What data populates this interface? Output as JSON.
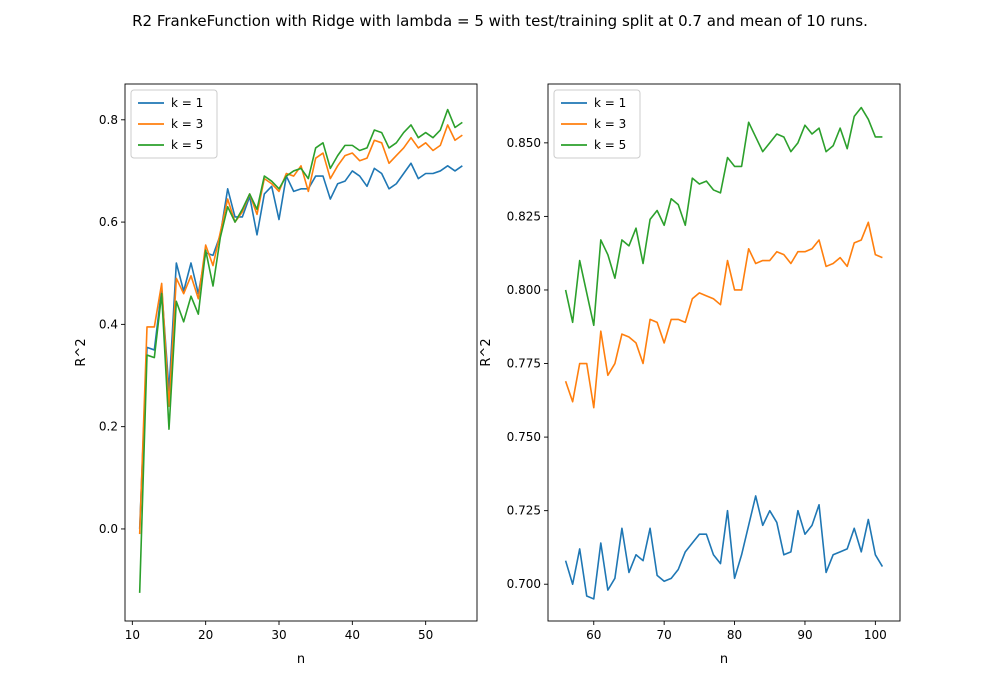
{
  "figure": {
    "suptitle": "R2 FrankeFunction with Ridge with lambda = 5 with test/training split at 0.7 and mean of 10 runs."
  },
  "colors": {
    "k1": "#1f77b4",
    "k3": "#ff7f0e",
    "k5": "#2ca02c"
  },
  "chart_data": [
    {
      "type": "line",
      "xlabel": "n",
      "ylabel": "R^2",
      "xlim": [
        9,
        57
      ],
      "ylim": [
        -0.18,
        0.87
      ],
      "xticks": [
        10,
        20,
        30,
        40,
        50
      ],
      "yticks": [
        0.0,
        0.2,
        0.4,
        0.6,
        0.8
      ],
      "xtick_labels": [
        "10",
        "20",
        "30",
        "40",
        "50"
      ],
      "ytick_labels": [
        "0.0",
        "0.2",
        "0.4",
        "0.6",
        "0.8"
      ],
      "legend_position": "top-left",
      "x": [
        11,
        12,
        13,
        14,
        15,
        16,
        17,
        18,
        19,
        20,
        21,
        22,
        23,
        24,
        25,
        26,
        27,
        28,
        29,
        30,
        31,
        32,
        33,
        34,
        35,
        36,
        37,
        38,
        39,
        40,
        41,
        42,
        43,
        44,
        45,
        46,
        47,
        48,
        49,
        50,
        51,
        52,
        53,
        54,
        55
      ],
      "series": [
        {
          "name": "k = 1",
          "color_key": "k1",
          "values": [
            0.0,
            0.355,
            0.35,
            0.47,
            0.27,
            0.52,
            0.465,
            0.52,
            0.46,
            0.54,
            0.535,
            0.575,
            0.665,
            0.61,
            0.61,
            0.65,
            0.575,
            0.655,
            0.67,
            0.605,
            0.69,
            0.66,
            0.665,
            0.665,
            0.69,
            0.69,
            0.645,
            0.675,
            0.68,
            0.7,
            0.69,
            0.67,
            0.705,
            0.695,
            0.665,
            0.675,
            0.695,
            0.715,
            0.685,
            0.695,
            0.695,
            0.7,
            0.71,
            0.7,
            0.71
          ]
        },
        {
          "name": "k = 3",
          "color_key": "k3",
          "values": [
            -0.01,
            0.395,
            0.395,
            0.48,
            0.24,
            0.49,
            0.46,
            0.495,
            0.45,
            0.555,
            0.515,
            0.58,
            0.645,
            0.6,
            0.62,
            0.655,
            0.615,
            0.685,
            0.675,
            0.66,
            0.695,
            0.69,
            0.71,
            0.66,
            0.725,
            0.735,
            0.685,
            0.71,
            0.73,
            0.735,
            0.72,
            0.725,
            0.76,
            0.755,
            0.715,
            0.73,
            0.745,
            0.765,
            0.745,
            0.755,
            0.74,
            0.75,
            0.79,
            0.76,
            0.77
          ]
        },
        {
          "name": "k = 5",
          "color_key": "k5",
          "values": [
            -0.125,
            0.34,
            0.335,
            0.46,
            0.195,
            0.445,
            0.405,
            0.455,
            0.42,
            0.545,
            0.475,
            0.57,
            0.63,
            0.6,
            0.625,
            0.655,
            0.625,
            0.69,
            0.68,
            0.665,
            0.69,
            0.7,
            0.705,
            0.685,
            0.745,
            0.755,
            0.705,
            0.73,
            0.75,
            0.75,
            0.74,
            0.745,
            0.78,
            0.775,
            0.745,
            0.755,
            0.775,
            0.79,
            0.765,
            0.775,
            0.765,
            0.78,
            0.82,
            0.785,
            0.795
          ]
        }
      ]
    },
    {
      "type": "line",
      "xlabel": "n",
      "ylabel": "R^2",
      "xlim": [
        53.5,
        103.5
      ],
      "ylim": [
        0.6875,
        0.87
      ],
      "xticks": [
        60,
        70,
        80,
        90,
        100
      ],
      "yticks": [
        0.7,
        0.725,
        0.75,
        0.775,
        0.8,
        0.825,
        0.85
      ],
      "xtick_labels": [
        "60",
        "70",
        "80",
        "90",
        "100"
      ],
      "ytick_labels": [
        "0.700",
        "0.725",
        "0.750",
        "0.775",
        "0.800",
        "0.825",
        "0.850"
      ],
      "legend_position": "top-left",
      "x": [
        56,
        57,
        58,
        59,
        60,
        61,
        62,
        63,
        64,
        65,
        66,
        67,
        68,
        69,
        70,
        71,
        72,
        73,
        74,
        75,
        76,
        77,
        78,
        79,
        80,
        81,
        82,
        83,
        84,
        85,
        86,
        87,
        88,
        89,
        90,
        91,
        92,
        93,
        94,
        95,
        96,
        97,
        98,
        99,
        100,
        101
      ],
      "series": [
        {
          "name": "k = 1",
          "color_key": "k1",
          "values": [
            0.708,
            0.7,
            0.712,
            0.696,
            0.695,
            0.714,
            0.698,
            0.702,
            0.719,
            0.704,
            0.71,
            0.708,
            0.719,
            0.703,
            0.701,
            0.702,
            0.705,
            0.711,
            0.714,
            0.717,
            0.717,
            0.71,
            0.707,
            0.725,
            0.702,
            0.71,
            0.72,
            0.73,
            0.72,
            0.725,
            0.721,
            0.71,
            0.711,
            0.725,
            0.717,
            0.72,
            0.727,
            0.704,
            0.71,
            0.711,
            0.712,
            0.719,
            0.711,
            0.722,
            0.71,
            0.706
          ]
        },
        {
          "name": "k = 3",
          "color_key": "k3",
          "values": [
            0.769,
            0.762,
            0.775,
            0.775,
            0.76,
            0.786,
            0.771,
            0.775,
            0.785,
            0.784,
            0.782,
            0.775,
            0.79,
            0.789,
            0.782,
            0.79,
            0.79,
            0.789,
            0.797,
            0.799,
            0.798,
            0.797,
            0.795,
            0.81,
            0.8,
            0.8,
            0.814,
            0.809,
            0.81,
            0.81,
            0.813,
            0.812,
            0.809,
            0.813,
            0.813,
            0.814,
            0.817,
            0.808,
            0.809,
            0.811,
            0.808,
            0.816,
            0.817,
            0.823,
            0.812,
            0.811
          ]
        },
        {
          "name": "k = 5",
          "color_key": "k5",
          "values": [
            0.8,
            0.789,
            0.81,
            0.799,
            0.788,
            0.817,
            0.812,
            0.804,
            0.817,
            0.815,
            0.821,
            0.809,
            0.824,
            0.827,
            0.822,
            0.831,
            0.829,
            0.822,
            0.838,
            0.836,
            0.837,
            0.834,
            0.833,
            0.845,
            0.842,
            0.842,
            0.857,
            0.852,
            0.847,
            0.85,
            0.853,
            0.852,
            0.847,
            0.85,
            0.856,
            0.853,
            0.855,
            0.847,
            0.849,
            0.855,
            0.848,
            0.859,
            0.862,
            0.858,
            0.852,
            0.852
          ]
        }
      ]
    }
  ]
}
